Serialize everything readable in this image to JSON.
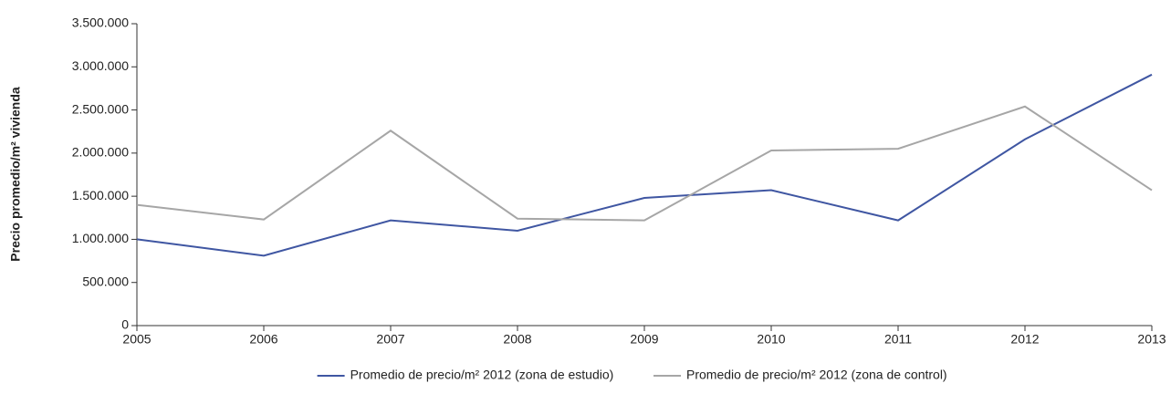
{
  "chart_data": {
    "type": "line",
    "ylabel": "Precio promedio/m² vivienda",
    "x": [
      2005,
      2006,
      2007,
      2008,
      2009,
      2010,
      2011,
      2012,
      2013
    ],
    "xlim": [
      2005,
      2013
    ],
    "xticks": [
      2005,
      2006,
      2007,
      2008,
      2009,
      2010,
      2011,
      2012,
      2013
    ],
    "ylim": [
      0,
      3500000
    ],
    "yticks": [
      0,
      {
        "value": 500000,
        "label": "500.000"
      },
      {
        "value": 1000000,
        "label": "1.000.000"
      },
      {
        "value": 1500000,
        "label": "1.500.000"
      },
      {
        "value": 2000000,
        "label": "2.000.000"
      },
      {
        "value": 2500000,
        "label": "2.500.000"
      },
      {
        "value": 3000000,
        "label": "3.000.000"
      },
      {
        "value": 3500000,
        "label": "3.500.000"
      }
    ],
    "grid": false,
    "legend": "bottom",
    "series": [
      {
        "name": "Promedio de precio/m² 2012 (zona de estudio)",
        "color": "#3f56a2",
        "values": [
          1000000,
          810000,
          1220000,
          1100000,
          1480000,
          1570000,
          1220000,
          2160000,
          2910000
        ]
      },
      {
        "name": "Promedio de precio/m² 2012 (zona de control)",
        "color": "#a6a6a6",
        "values": [
          1400000,
          1230000,
          2260000,
          1240000,
          1220000,
          2030000,
          2050000,
          2540000,
          1570000
        ]
      }
    ]
  }
}
